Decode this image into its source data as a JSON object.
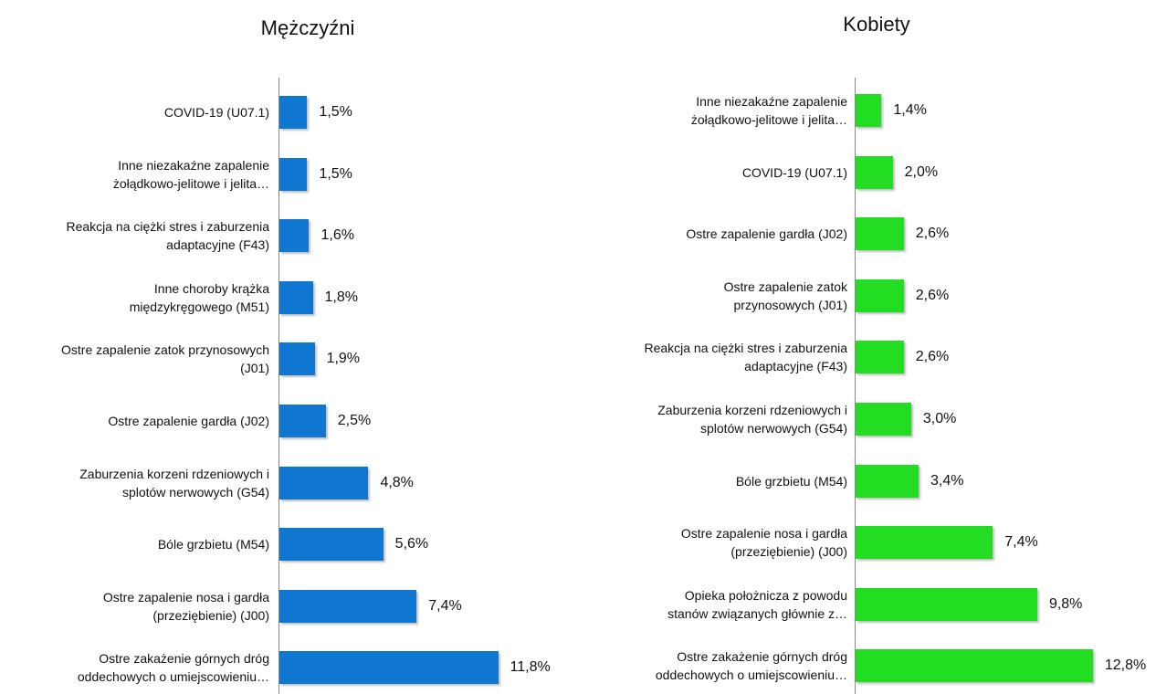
{
  "chart_data": [
    {
      "type": "bar",
      "orientation": "horizontal",
      "title": "Mężczyźni",
      "color": "#0f77cf",
      "categories": [
        [
          "COVID-19 (U07.1)"
        ],
        [
          "Inne niezakaźne zapalenie",
          "żołądkowo-jelitowe i jelita…"
        ],
        [
          "Reakcja na ciężki stres i zaburzenia",
          "adaptacyjne (F43)"
        ],
        [
          "Inne choroby krążka",
          "międzykręgowego (M51)"
        ],
        [
          "Ostre zapalenie zatok przynosowych",
          "(J01)"
        ],
        [
          "Ostre zapalenie gardła (J02)"
        ],
        [
          "Zaburzenia korzeni rdzeniowych i",
          "splotów nerwowych (G54)"
        ],
        [
          "Bóle grzbietu (M54)"
        ],
        [
          "Ostre zapalenie nosa i gardła",
          "(przeziębienie) (J00)"
        ],
        [
          "Ostre zakażenie górnych dróg",
          "oddechowych o umiejscowieniu…"
        ]
      ],
      "values": [
        1.5,
        1.5,
        1.6,
        1.8,
        1.9,
        2.5,
        4.8,
        5.6,
        7.4,
        11.8
      ],
      "value_labels": [
        "1,5%",
        "1,5%",
        "1,6%",
        "1,8%",
        "1,9%",
        "2,5%",
        "4,8%",
        "5,6%",
        "7,4%",
        "11,8%"
      ]
    },
    {
      "type": "bar",
      "orientation": "horizontal",
      "title": "Kobiety",
      "color": "#22dd22",
      "categories": [
        [
          "Inne niezakaźne zapalenie",
          "żołądkowo-jelitowe i jelita…"
        ],
        [
          "COVID-19 (U07.1)"
        ],
        [
          "Ostre zapalenie gardła (J02)"
        ],
        [
          "Ostre zapalenie zatok",
          "przynosowych (J01)"
        ],
        [
          "Reakcja na ciężki stres i zaburzenia",
          "adaptacyjne (F43)"
        ],
        [
          "Zaburzenia korzeni rdzeniowych i",
          "splotów nerwowych (G54)"
        ],
        [
          "Bóle grzbietu (M54)"
        ],
        [
          "Ostre zapalenie nosa i gardła",
          "(przeziębienie) (J00)"
        ],
        [
          "Opieka położnicza z powodu",
          "stanów związanych głównie z…"
        ],
        [
          "Ostre zakażenie górnych dróg",
          "oddechowych o umiejscowieniu…"
        ]
      ],
      "values": [
        1.4,
        2.0,
        2.6,
        2.6,
        2.6,
        3.0,
        3.4,
        7.4,
        9.8,
        12.8
      ],
      "value_labels": [
        "1,4%",
        "2,0%",
        "2,6%",
        "2,6%",
        "2,6%",
        "3,0%",
        "3,4%",
        "7,4%",
        "9,8%",
        "12,8%"
      ]
    }
  ]
}
